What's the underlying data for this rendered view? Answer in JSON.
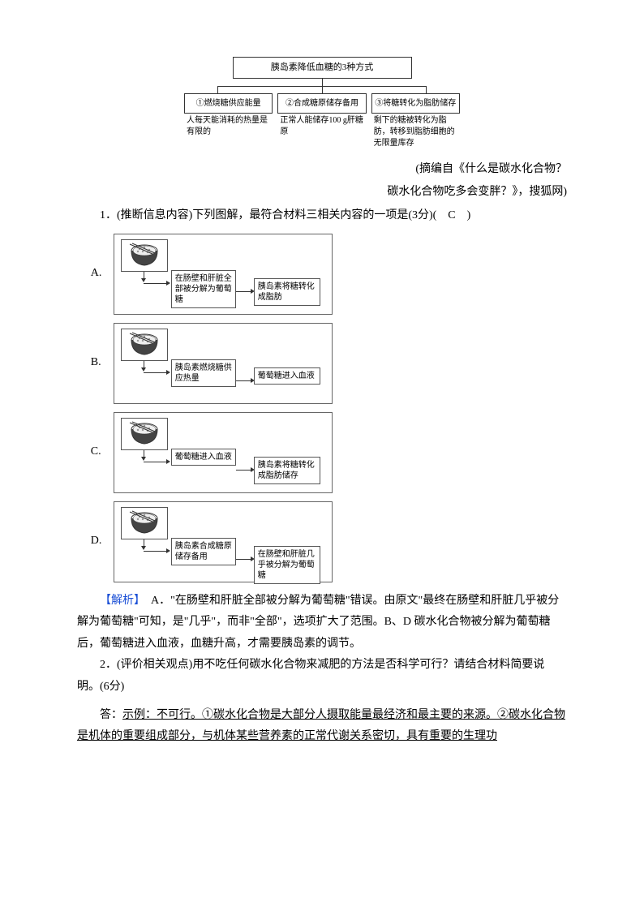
{
  "colors": {
    "text": "#000000",
    "link": "#1a4fd6",
    "border": "#333333",
    "bg": "#ffffff"
  },
  "top_diagram": {
    "title": "胰岛素降低血糖的3种方式",
    "cells": [
      {
        "head": "①燃烧糖供应能量",
        "desc": "人每天能消耗的热量是有限的"
      },
      {
        "head": "②合成糖原储存备用",
        "desc": "正常人能储存100 g肝糖原"
      },
      {
        "head": "③将糖转化为脂肪储存",
        "desc": "剩下的糖被转化为脂肪，转移到脂肪细胞的无限量库存"
      }
    ]
  },
  "source": {
    "line1": "(摘编自《什么是碳水化合物？",
    "line2": "碳水化合物吃多会变胖？》，搜狐网)"
  },
  "q1": {
    "text": "1．(推断信息内容)下列图解，最符合材料三相关内容的一项是(3分)(　C　)",
    "options": [
      {
        "label": "A.",
        "step1": "在肠壁和肝脏全部被分解为葡萄糖",
        "step2": "胰岛素将糖转化成脂肪"
      },
      {
        "label": "B.",
        "step1": "胰岛素燃烧糖供应热量",
        "step2": "葡萄糖进入血液"
      },
      {
        "label": "C.",
        "step1": "葡萄糖进入血液",
        "step2": "胰岛素将糖转化成脂肪储存"
      },
      {
        "label": "D.",
        "step1": "胰岛素合成糖原储存备用",
        "step2": "在肠壁和肝脏几乎被分解为葡萄糖"
      }
    ]
  },
  "analysis": {
    "label": "【解析】",
    "text": "　A．\"在肠壁和肝脏全部被分解为葡萄糖\"错误。由原文\"最终在肠壁和肝脏几乎被分解为葡萄糖\"可知，是\"几乎\"，而非\"全部\"，选项扩大了范围。B、D 碳水化合物被分解为葡萄糖后，葡萄糖进入血液，血糖升高，才需要胰岛素的调节。"
  },
  "q2": {
    "text": "2．(评价相关观点)用不吃任何碳水化合物来减肥的方法是否科学可行？请结合材料简要说明。(6分)",
    "answer_label": "答：",
    "answer": "示例：不可行。①碳水化合物是大部分人摄取能量最经济和最主要的来源。②碳水化合物是机体的重要组成部分，与机体某些营养素的正常代谢关系密切，具有重要的生理功"
  }
}
